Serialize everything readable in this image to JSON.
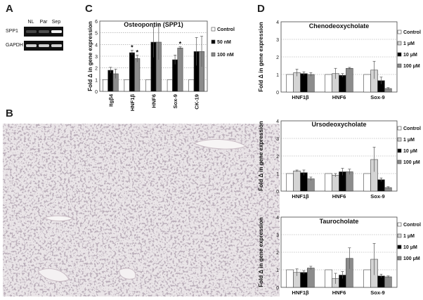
{
  "panels": {
    "a": "A",
    "b": "B",
    "c": "C",
    "d": "D"
  },
  "gel": {
    "lanes": [
      "NL",
      "Par",
      "Sep"
    ],
    "rows": [
      {
        "label": "SPP1",
        "intensity": [
          0.15,
          0.2,
          1.0
        ]
      },
      {
        "label": "GAPDH",
        "intensity": [
          0.85,
          0.85,
          0.85
        ]
      }
    ]
  },
  "tissue": {
    "description_visible": false
  },
  "chart_data": [
    {
      "type": "bar",
      "title": "Osteopontin (SPP1)",
      "ylabel": "Fold Δ in gene expression",
      "ylim": [
        0,
        6
      ],
      "yticks": [
        "0",
        "1",
        "2",
        "3",
        "4",
        "5",
        "6"
      ],
      "grid": true,
      "legend_position": "right",
      "categories": [
        "Itgβ4",
        "HNF1β",
        "HNF6",
        "Sox-9",
        "CK-19"
      ],
      "series": [
        {
          "name": "Control",
          "color": "#ffffff",
          "values": [
            1,
            1,
            1,
            1,
            1
          ],
          "errors": [
            0,
            0,
            0,
            0,
            0
          ]
        },
        {
          "name": "50 nM",
          "color": "#000000",
          "values": [
            1.8,
            3.3,
            4.2,
            2.7,
            3.4
          ],
          "errors": [
            0.25,
            0.2,
            1.3,
            0.4,
            1.2
          ]
        },
        {
          "name": "100 nM",
          "color": "#8c8c8c",
          "values": [
            1.5,
            2.8,
            4.2,
            3.7,
            3.4
          ],
          "errors": [
            0.4,
            0.3,
            1.5,
            0.1,
            1.3
          ]
        }
      ],
      "annotations": [
        {
          "category": "HNF1β",
          "series": "50 nM",
          "text": "*"
        },
        {
          "category": "HNF1β",
          "series": "100 nM",
          "text": "*"
        },
        {
          "category": "Sox-9",
          "series": "100 nM",
          "text": "*"
        }
      ]
    },
    {
      "type": "bar",
      "title": "Chenodeoxycholate",
      "ylabel": "Fold Δ in gene expression",
      "ylim": [
        0,
        4
      ],
      "yticks": [
        "0",
        "1",
        "2",
        "3",
        "4"
      ],
      "grid": true,
      "legend_position": "right",
      "categories": [
        "HNF1β",
        "HNF6",
        "Sox-9"
      ],
      "series": [
        {
          "name": "Control",
          "color": "#ffffff",
          "values": [
            1,
            1,
            1
          ],
          "errors": [
            0,
            0,
            0
          ]
        },
        {
          "name": "1 μM",
          "color": "#d4d4d4",
          "values": [
            1.1,
            1.05,
            1.25
          ],
          "errors": [
            0.2,
            0.3,
            0.5
          ]
        },
        {
          "name": "10 μM",
          "color": "#000000",
          "values": [
            1.05,
            0.95,
            0.65
          ],
          "errors": [
            0.1,
            0.1,
            0.2
          ]
        },
        {
          "name": "100 μM",
          "color": "#8c8c8c",
          "values": [
            1.0,
            1.35,
            0.2
          ],
          "errors": [
            0.1,
            0.05,
            0.05
          ]
        }
      ]
    },
    {
      "type": "bar",
      "title": "Ursodeoxycholate",
      "ylabel": "Fold Δ in gene expression",
      "ylim": [
        0,
        4
      ],
      "yticks": [
        "0",
        "1",
        "2",
        "3",
        "4"
      ],
      "grid": true,
      "legend_position": "right",
      "categories": [
        "HNF1β",
        "HNF6",
        "Sox-9"
      ],
      "series": [
        {
          "name": "Control",
          "color": "#ffffff",
          "values": [
            1,
            1,
            1
          ],
          "errors": [
            0,
            0,
            0
          ]
        },
        {
          "name": "1 μM",
          "color": "#d4d4d4",
          "values": [
            1.15,
            0.9,
            1.8
          ],
          "errors": [
            0.05,
            0.1,
            0.7
          ]
        },
        {
          "name": "10 μM",
          "color": "#000000",
          "values": [
            1.05,
            1.1,
            0.65
          ],
          "errors": [
            0.15,
            0.2,
            0.1
          ]
        },
        {
          "name": "100 μM",
          "color": "#8c8c8c",
          "values": [
            0.7,
            1.1,
            0.2
          ],
          "errors": [
            0.1,
            0.15,
            0.05
          ]
        }
      ]
    },
    {
      "type": "bar",
      "title": "Taurocholate",
      "ylabel": "Fold Δ in gene expression",
      "ylim": [
        0,
        4
      ],
      "yticks": [
        "0",
        "1",
        "2",
        "3",
        "4"
      ],
      "grid": true,
      "legend_position": "right",
      "categories": [
        "HNF1β",
        "HNF6",
        "Sox-9"
      ],
      "series": [
        {
          "name": "Control",
          "color": "#ffffff",
          "values": [
            1,
            1,
            1
          ],
          "errors": [
            0,
            0,
            0
          ]
        },
        {
          "name": "1 μM",
          "color": "#d4d4d4",
          "values": [
            0.85,
            0.5,
            1.6
          ],
          "errors": [
            0.2,
            0.3,
            0.9
          ]
        },
        {
          "name": "10 μM",
          "color": "#000000",
          "values": [
            0.85,
            0.7,
            0.65
          ],
          "errors": [
            0.1,
            0.2,
            0.1
          ]
        },
        {
          "name": "100 μM",
          "color": "#8c8c8c",
          "values": [
            1.1,
            1.65,
            0.6
          ],
          "errors": [
            0.1,
            0.6,
            0.05
          ]
        }
      ]
    }
  ]
}
